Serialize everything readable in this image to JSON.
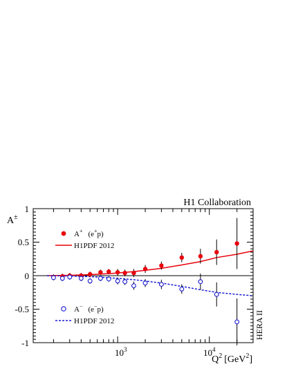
{
  "chart_data": {
    "type": "scatter",
    "collaboration": "H1 Collaboration",
    "experiment": "HERA II",
    "ylabel": "A",
    "ylabel_sup": "±",
    "xlabel": "Q",
    "xlabel_sup": "2",
    "xlabel_unit": "[GeV",
    "xlabel_unit_sup": "2",
    "xlabel_unit_close": "]",
    "xscale": "log",
    "xlim": [
      120,
      30000
    ],
    "ylim": [
      -1,
      1
    ],
    "xticks": [
      {
        "base": "10",
        "exp": "3"
      },
      {
        "base": "10",
        "exp": "4"
      }
    ],
    "yticks": [
      "1",
      "0.5",
      "0",
      "-0.5",
      "-1"
    ],
    "colors": {
      "plus": "#e8000b",
      "minus": "#1a1ad6"
    },
    "legend_plus": {
      "marker_label": "A",
      "marker_sup": "+",
      "process": "(e",
      "process_sup": "+",
      "process_end": "p)",
      "line_label": "H1PDF 2012"
    },
    "legend_minus": {
      "marker_label": "A",
      "marker_sup": "−",
      "process": "(e",
      "process_sup": "−",
      "process_end": "p)",
      "line_label": "H1PDF 2012"
    },
    "series": [
      {
        "marker": "filled-circle",
        "color": "#e8000b",
        "points": [
          {
            "x": 200,
            "y": -0.02,
            "err": 0.04
          },
          {
            "x": 250,
            "y": -0.01,
            "err": 0.04
          },
          {
            "x": 300,
            "y": 0.0,
            "err": 0.04
          },
          {
            "x": 400,
            "y": 0.0,
            "err": 0.04
          },
          {
            "x": 500,
            "y": 0.02,
            "err": 0.04
          },
          {
            "x": 650,
            "y": 0.05,
            "err": 0.04
          },
          {
            "x": 800,
            "y": 0.06,
            "err": 0.04
          },
          {
            "x": 1000,
            "y": 0.05,
            "err": 0.05
          },
          {
            "x": 1200,
            "y": 0.04,
            "err": 0.05
          },
          {
            "x": 1500,
            "y": 0.04,
            "err": 0.06
          },
          {
            "x": 2000,
            "y": 0.1,
            "err": 0.06
          },
          {
            "x": 3000,
            "y": 0.15,
            "err": 0.06
          },
          {
            "x": 5000,
            "y": 0.27,
            "err": 0.07
          },
          {
            "x": 8000,
            "y": 0.29,
            "err": 0.11
          },
          {
            "x": 12000,
            "y": 0.35,
            "err": 0.19
          },
          {
            "x": 20000,
            "y": 0.48,
            "err": 0.38
          }
        ]
      },
      {
        "marker": "open-circle",
        "color": "#1a1ad6",
        "points": [
          {
            "x": 200,
            "y": -0.03,
            "err": 0.04
          },
          {
            "x": 250,
            "y": -0.04,
            "err": 0.04
          },
          {
            "x": 300,
            "y": -0.02,
            "err": 0.04
          },
          {
            "x": 400,
            "y": -0.04,
            "err": 0.04
          },
          {
            "x": 500,
            "y": -0.08,
            "err": 0.04
          },
          {
            "x": 650,
            "y": -0.04,
            "err": 0.04
          },
          {
            "x": 800,
            "y": -0.05,
            "err": 0.04
          },
          {
            "x": 1000,
            "y": -0.08,
            "err": 0.05
          },
          {
            "x": 1200,
            "y": -0.09,
            "err": 0.05
          },
          {
            "x": 1500,
            "y": -0.15,
            "err": 0.06
          },
          {
            "x": 2000,
            "y": -0.11,
            "err": 0.06
          },
          {
            "x": 3000,
            "y": -0.13,
            "err": 0.07
          },
          {
            "x": 5000,
            "y": -0.2,
            "err": 0.07
          },
          {
            "x": 8000,
            "y": -0.09,
            "err": 0.12
          },
          {
            "x": 12000,
            "y": -0.28,
            "err": 0.18
          },
          {
            "x": 20000,
            "y": -0.69,
            "err": 0.35
          }
        ]
      }
    ],
    "curves": [
      {
        "style": "solid",
        "color": "#e8000b",
        "points": [
          [
            170,
            0.0
          ],
          [
            300,
            0.005
          ],
          [
            500,
            0.015
          ],
          [
            800,
            0.03
          ],
          [
            1000,
            0.04
          ],
          [
            1500,
            0.06
          ],
          [
            2000,
            0.08
          ],
          [
            3000,
            0.11
          ],
          [
            5000,
            0.16
          ],
          [
            8000,
            0.21
          ],
          [
            12000,
            0.27
          ],
          [
            20000,
            0.32
          ],
          [
            30000,
            0.37
          ]
        ]
      },
      {
        "style": "dashed",
        "color": "#1a1ad6",
        "points": [
          [
            170,
            0.0
          ],
          [
            300,
            -0.005
          ],
          [
            500,
            -0.015
          ],
          [
            800,
            -0.03
          ],
          [
            1000,
            -0.04
          ],
          [
            1500,
            -0.06
          ],
          [
            2000,
            -0.08
          ],
          [
            3000,
            -0.11
          ],
          [
            5000,
            -0.16
          ],
          [
            8000,
            -0.21
          ],
          [
            12000,
            -0.25
          ],
          [
            20000,
            -0.28
          ],
          [
            30000,
            -0.3
          ]
        ]
      }
    ]
  }
}
